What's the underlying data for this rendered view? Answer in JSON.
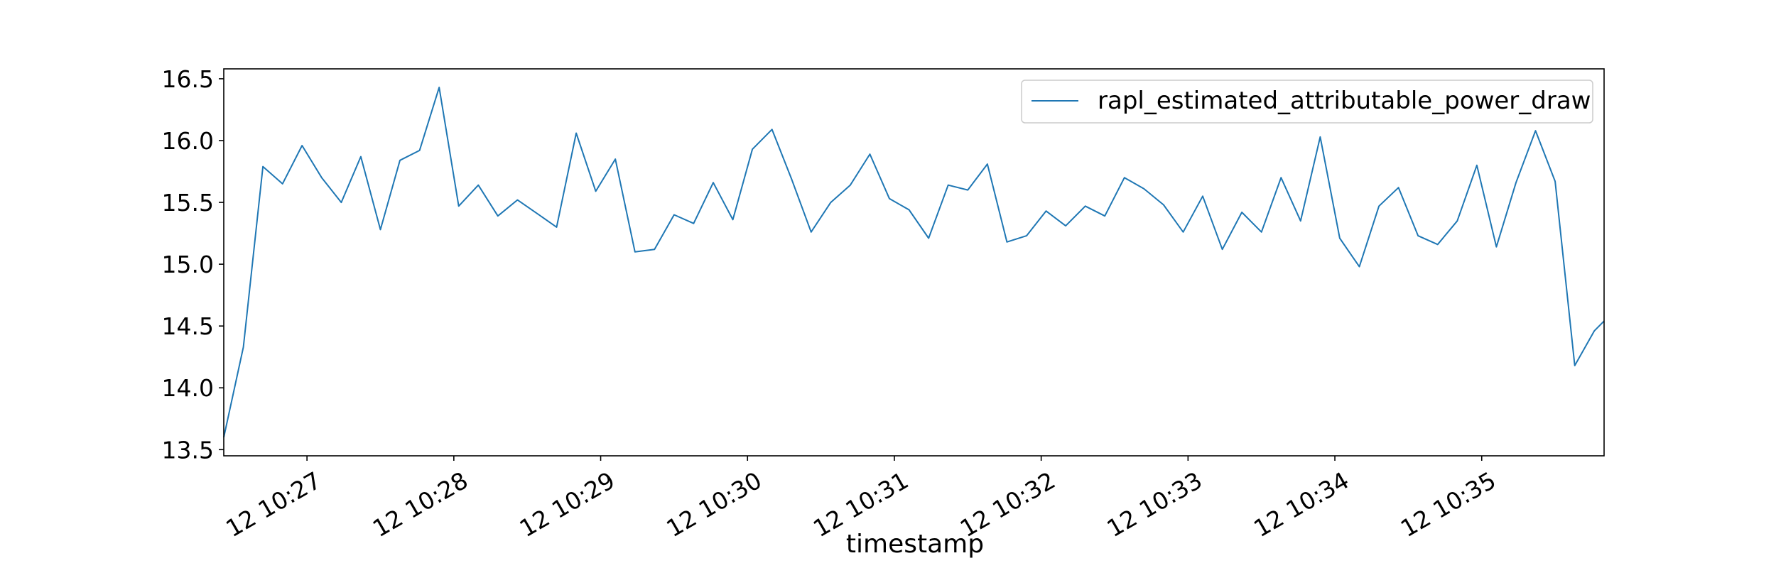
{
  "chart_data": {
    "type": "line",
    "title": "",
    "xlabel": "timestamp",
    "ylabel": "",
    "ylim": [
      13.45,
      16.58
    ],
    "xlim": [
      "10:26:26",
      "10:35:50"
    ],
    "x_tick_labels": [
      "12 10:27",
      "12 10:28",
      "12 10:29",
      "12 10:30",
      "12 10:31",
      "12 10:32",
      "12 10:33",
      "12 10:34",
      "12 10:35"
    ],
    "y_tick_labels": [
      "13.5",
      "14.0",
      "14.5",
      "15.0",
      "15.5",
      "16.0",
      "16.5"
    ],
    "grid": false,
    "legend_position": "top-right",
    "line_color": "#1f77b4",
    "series": [
      {
        "name": "rapl_estimated_attributable_power_draw",
        "x": [
          "10:26:26",
          "10:26:34",
          "10:26:42",
          "10:26:50",
          "10:26:58",
          "10:27:06",
          "10:27:14",
          "10:27:22",
          "10:27:30",
          "10:27:38",
          "10:27:46",
          "10:27:54",
          "10:28:02",
          "10:28:10",
          "10:28:18",
          "10:28:26",
          "10:28:34",
          "10:28:42",
          "10:28:50",
          "10:28:58",
          "10:29:06",
          "10:29:14",
          "10:29:22",
          "10:29:30",
          "10:29:38",
          "10:29:46",
          "10:29:54",
          "10:30:02",
          "10:30:10",
          "10:30:18",
          "10:30:26",
          "10:30:34",
          "10:30:42",
          "10:30:50",
          "10:30:58",
          "10:31:06",
          "10:31:14",
          "10:31:22",
          "10:31:30",
          "10:31:38",
          "10:31:46",
          "10:31:54",
          "10:32:02",
          "10:32:10",
          "10:32:18",
          "10:32:26",
          "10:32:34",
          "10:32:42",
          "10:32:50",
          "10:32:58",
          "10:33:06",
          "10:33:14",
          "10:33:22",
          "10:33:30",
          "10:33:38",
          "10:33:46",
          "10:33:54",
          "10:34:02",
          "10:34:10",
          "10:34:18",
          "10:34:26",
          "10:34:34",
          "10:34:42",
          "10:34:50",
          "10:34:58",
          "10:35:06",
          "10:35:14",
          "10:35:22",
          "10:35:30",
          "10:35:38",
          "10:35:46",
          "10:35:50"
        ],
        "values": [
          13.6,
          14.33,
          15.79,
          15.65,
          15.96,
          15.7,
          15.5,
          15.87,
          15.28,
          15.84,
          15.92,
          16.43,
          15.47,
          15.64,
          15.39,
          15.52,
          15.41,
          15.3,
          16.06,
          15.59,
          15.85,
          15.1,
          15.12,
          15.4,
          15.33,
          15.66,
          15.36,
          15.93,
          16.09,
          15.69,
          15.26,
          15.5,
          15.64,
          15.89,
          15.53,
          15.44,
          15.21,
          15.64,
          15.6,
          15.81,
          15.18,
          15.23,
          15.43,
          15.31,
          15.47,
          15.39,
          15.7,
          15.61,
          15.48,
          15.26,
          15.55,
          15.12,
          15.42,
          15.26,
          15.7,
          15.35,
          16.03,
          15.21,
          14.98,
          15.47,
          15.62,
          15.23,
          15.16,
          15.35,
          15.8,
          15.14,
          15.66,
          16.08,
          15.67,
          14.18,
          14.46,
          14.54
        ]
      }
    ]
  }
}
